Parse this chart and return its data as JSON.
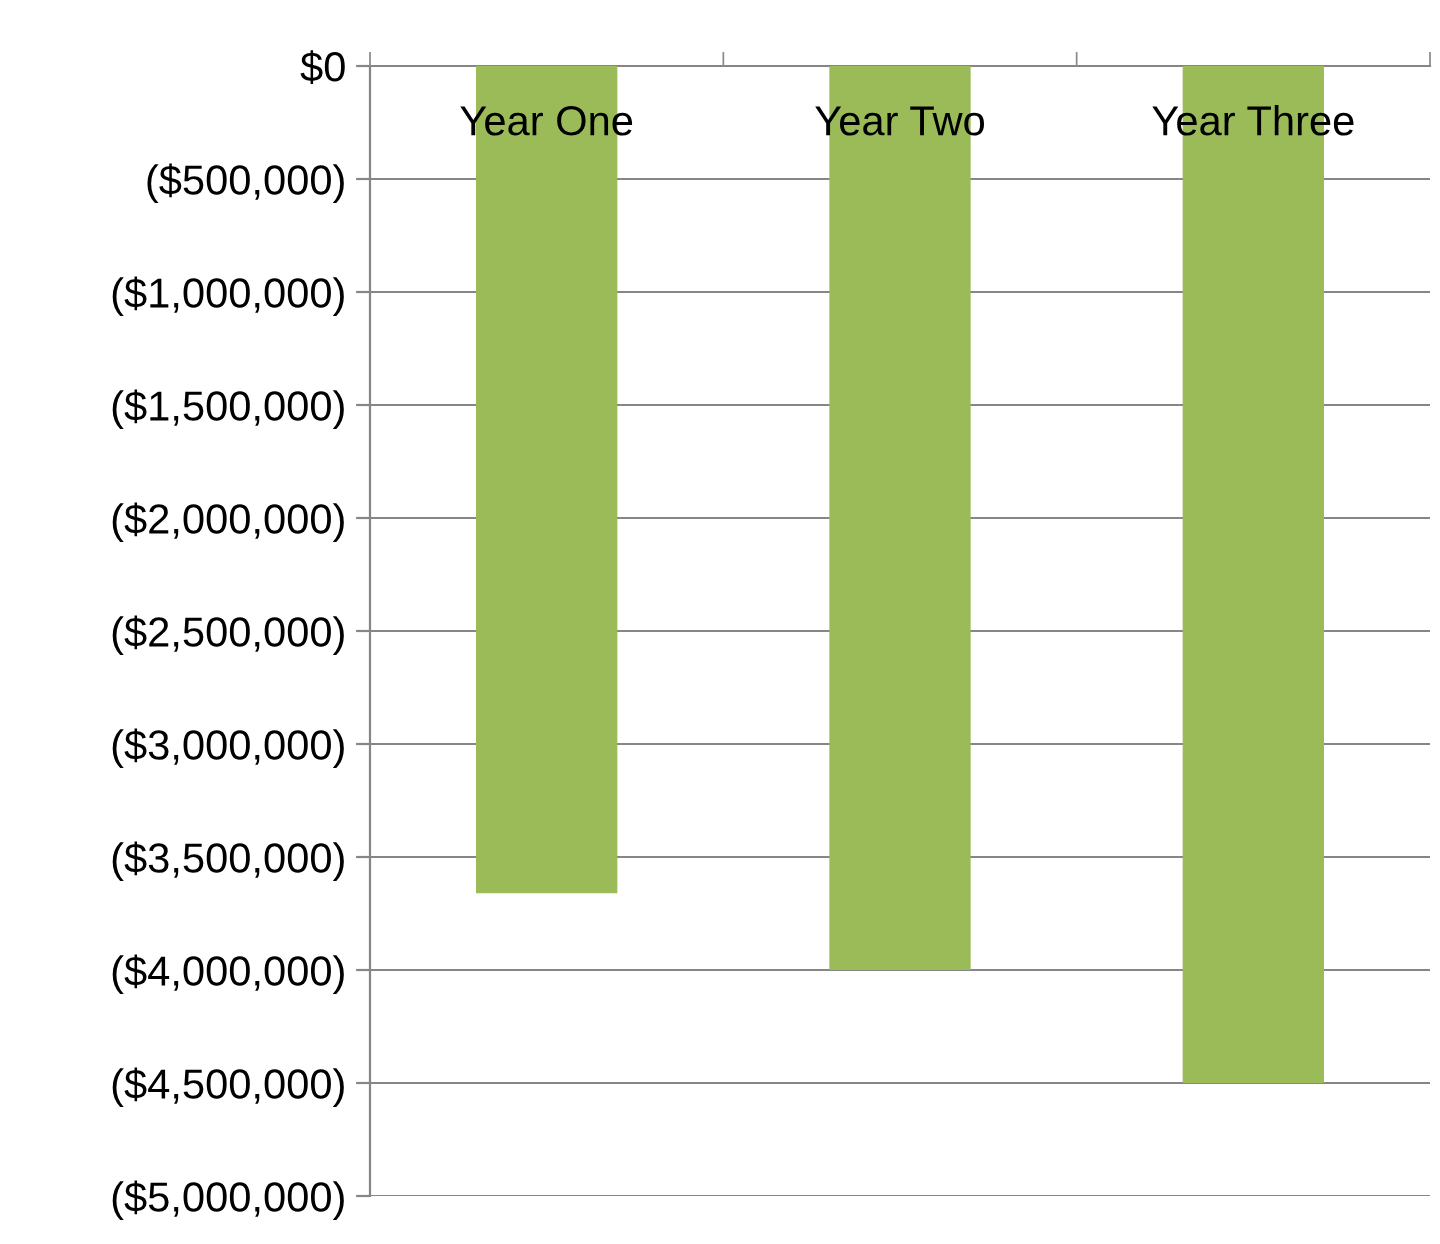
{
  "chart_data": {
    "type": "bar",
    "categories": [
      "Year One",
      "Year Two",
      "Year Three"
    ],
    "values": [
      -3660000,
      -4000000,
      -4500000
    ],
    "color": "#9bbb59",
    "ylim": [
      -5000000,
      0
    ],
    "yticks": [
      {
        "value": 0,
        "label": "$0"
      },
      {
        "value": -500000,
        "label": "($500,000)"
      },
      {
        "value": -1000000,
        "label": "($1,000,000)"
      },
      {
        "value": -1500000,
        "label": "($1,500,000)"
      },
      {
        "value": -2000000,
        "label": "($2,000,000)"
      },
      {
        "value": -2500000,
        "label": "($2,500,000)"
      },
      {
        "value": -3000000,
        "label": "($3,000,000)"
      },
      {
        "value": -3500000,
        "label": "($3,500,000)"
      },
      {
        "value": -4000000,
        "label": "($4,000,000)"
      },
      {
        "value": -4500000,
        "label": "($4,500,000)"
      },
      {
        "value": -5000000,
        "label": "($5,000,000)"
      }
    ],
    "grid": "y"
  }
}
